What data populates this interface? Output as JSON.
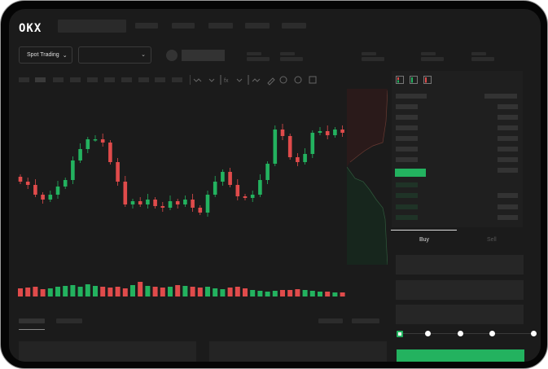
{
  "header": {
    "logo": "OKX"
  },
  "toolbar": {
    "market_dropdown": "Spot Trading",
    "pair_dropdown": ""
  },
  "order_form": {
    "tabs": [
      {
        "label": "Buy",
        "active": true
      },
      {
        "label": "Sell",
        "active": false
      }
    ],
    "slider_percent": 0
  },
  "colors": {
    "up": "#23b25f",
    "down": "#e04b4b",
    "background": "#1b1b1b",
    "accent": "#23b25f"
  },
  "icons": {
    "chevron": "chevron-down-icon",
    "layout_buttons": [
      "orderbook-both-icon",
      "orderbook-buy-icon",
      "orderbook-sell-icon"
    ]
  },
  "chart_data": {
    "type": "candlestick",
    "first_open": 94,
    "closes": [
      88,
      84,
      72,
      66,
      72,
      82,
      90,
      114,
      128,
      140,
      140,
      136,
      112,
      88,
      60,
      64,
      60,
      66,
      58,
      56,
      64,
      60,
      66,
      56,
      50,
      72,
      88,
      100,
      84,
      70,
      68,
      72,
      90,
      110,
      152,
      144,
      118,
      112,
      122,
      148,
      150,
      145,
      152,
      148
    ],
    "volumes": [
      10,
      11,
      12,
      9,
      10,
      12,
      13,
      14,
      12,
      15,
      13,
      12,
      11,
      12,
      10,
      14,
      18,
      13,
      12,
      11,
      12,
      14,
      13,
      12,
      11,
      12,
      10,
      9,
      11,
      12,
      10,
      8,
      7,
      6,
      7,
      8,
      8,
      9,
      8,
      7,
      6,
      6,
      5,
      5
    ]
  }
}
